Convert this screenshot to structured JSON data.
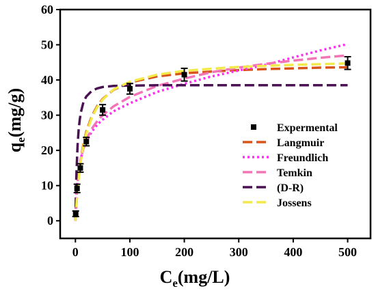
{
  "chart_data": {
    "type": "scatter",
    "xlabel": "C",
    "xlabel_sub": "e",
    "xlabel_unit": "(mg/L)",
    "ylabel": "q",
    "ylabel_sub": "e",
    "ylabel_unit": "(mg/g)",
    "xlim": [
      -28,
      542
    ],
    "ylim": [
      -5,
      60
    ],
    "xticks": [
      0,
      100,
      200,
      300,
      400,
      500
    ],
    "yticks": [
      0,
      10,
      20,
      30,
      40,
      50,
      60
    ],
    "legend_position": "center-right",
    "experimental": {
      "name": "Expermental",
      "color": "#000000",
      "x": [
        0.5,
        3,
        9,
        20,
        50,
        100,
        200,
        500
      ],
      "y": [
        2,
        9.2,
        15,
        22.5,
        31.5,
        37.5,
        41.5,
        44.8
      ],
      "err": [
        0.8,
        1.2,
        1.2,
        1.2,
        1.5,
        1.5,
        1.8,
        1.8
      ]
    },
    "series": [
      {
        "name": "Langmuir",
        "color": "#d9541a",
        "dash": "14 6",
        "x": [
          0,
          2,
          5,
          10,
          15,
          20,
          30,
          40,
          50,
          70,
          100,
          150,
          200,
          250,
          300,
          350,
          400,
          450,
          500
        ],
        "y": [
          0,
          5.2,
          11.0,
          17.6,
          22.1,
          25.3,
          29.7,
          32.6,
          34.6,
          37.2,
          39.3,
          41.0,
          41.9,
          42.4,
          42.8,
          43.1,
          43.3,
          43.5,
          43.6
        ]
      },
      {
        "name": "Freundlich",
        "color": "#ff2ff2",
        "dash": "3 4",
        "x": [
          0.5,
          2,
          5,
          10,
          15,
          20,
          30,
          40,
          50,
          70,
          100,
          150,
          200,
          250,
          300,
          350,
          400,
          450,
          500
        ],
        "y": [
          3.4,
          8.4,
          13.4,
          17.8,
          20.6,
          22.5,
          25.3,
          27.3,
          28.7,
          31.1,
          33.4,
          36.6,
          38.9,
          41.0,
          42.7,
          44.3,
          46.4,
          48.4,
          50.2
        ]
      },
      {
        "name": "Temkin",
        "color": "#f275b5",
        "dash": "14 6",
        "x": [
          1.5,
          3,
          5,
          10,
          15,
          20,
          30,
          40,
          50,
          70,
          100,
          150,
          200,
          250,
          300,
          350,
          400,
          450,
          500
        ],
        "y": [
          3.5,
          8.5,
          12.4,
          17.7,
          20.8,
          23.0,
          26.1,
          28.3,
          30.0,
          32.5,
          35.2,
          38.3,
          40.4,
          42.2,
          43.5,
          44.6,
          45.5,
          46.3,
          47.0
        ]
      },
      {
        "name": "(D-R)",
        "color": "#4b1253",
        "dash": "14 6",
        "x": [
          0,
          1,
          2,
          4,
          6,
          8,
          10,
          15,
          20,
          30,
          40,
          50,
          70,
          100,
          150,
          200,
          300,
          400,
          500
        ],
        "y": [
          0,
          8,
          14,
          21.5,
          26,
          28.8,
          30.8,
          33.8,
          35.3,
          36.9,
          37.6,
          38.0,
          38.3,
          38.4,
          38.5,
          38.5,
          38.5,
          38.5,
          38.5
        ]
      },
      {
        "name": "Jossens",
        "color": "#f2e94a",
        "dash": "14 6",
        "x": [
          0,
          2,
          5,
          10,
          15,
          20,
          30,
          40,
          50,
          70,
          100,
          150,
          200,
          250,
          300,
          350,
          400,
          450,
          500
        ],
        "y": [
          0,
          4.9,
          10.7,
          17.1,
          21.5,
          24.8,
          29.3,
          32.3,
          34.4,
          37.3,
          39.5,
          41.5,
          42.6,
          43.2,
          43.7,
          44.0,
          44.3,
          44.5,
          44.7
        ]
      }
    ]
  }
}
